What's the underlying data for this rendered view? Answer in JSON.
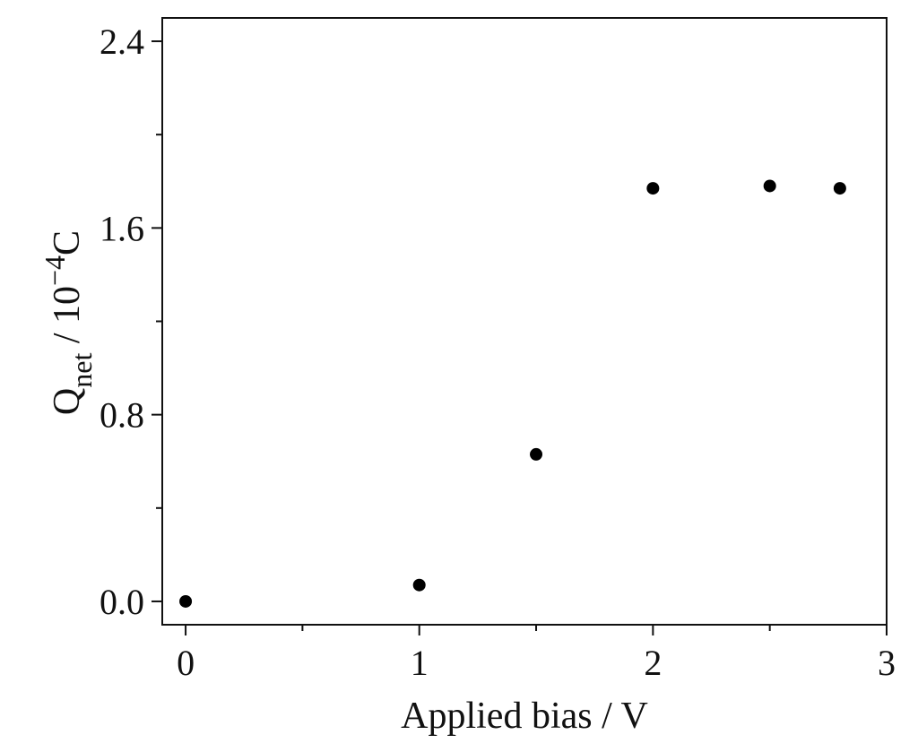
{
  "chart_data": {
    "type": "scatter",
    "x_label": "Applied bias / V",
    "y_label": {
      "main": "Q",
      "sub": "net",
      "mid": " / 10",
      "sup": "−4",
      "end": "C"
    },
    "x": [
      0,
      1,
      1.5,
      2,
      2.5,
      2.8
    ],
    "values": [
      0,
      0.07,
      0.63,
      1.77,
      1.78,
      1.77
    ],
    "color": "#000000",
    "xlim": [
      -0.1,
      3
    ],
    "xticks": [
      0,
      1,
      2,
      3
    ],
    "xminor": [
      0.5,
      1.5,
      2.5
    ],
    "ylim": [
      -0.1,
      2.5
    ],
    "yticks": [
      {
        "value": 0,
        "label": "0.0"
      },
      0.8,
      1.6,
      {
        "value": 2.4,
        "label": "2.4"
      }
    ],
    "yminor": [
      0.4,
      1.2,
      2.0
    ]
  }
}
